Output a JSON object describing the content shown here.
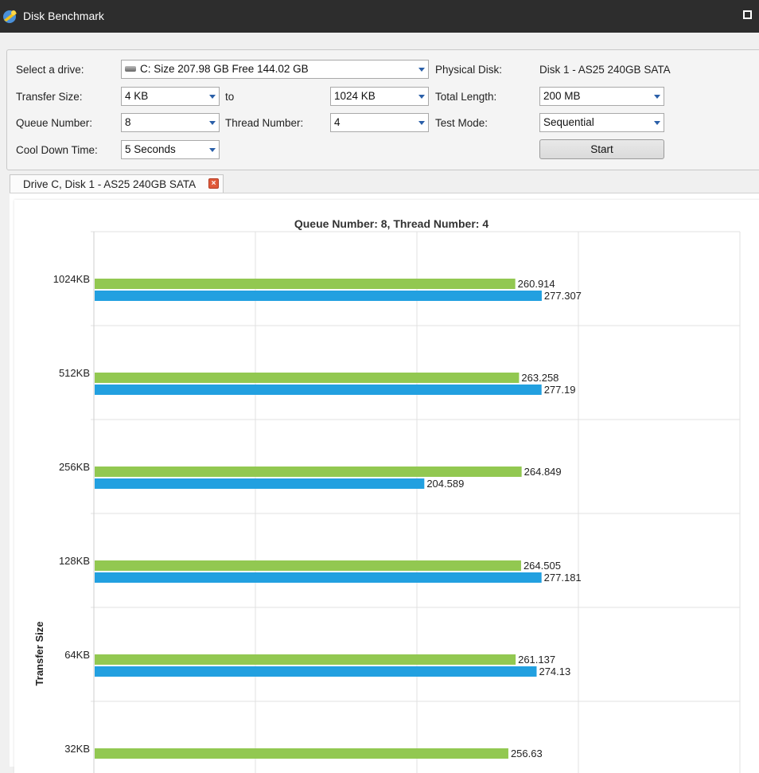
{
  "window": {
    "title": "Disk Benchmark"
  },
  "settings": {
    "drive_label": "Select a drive:",
    "drive_value": "C:  Size 207.98 GB  Free 144.02 GB",
    "physical_disk_label": "Physical Disk:",
    "physical_disk_value": "Disk 1 - AS25 240GB SATA",
    "transfer_size_label": "Transfer Size:",
    "transfer_from": "4 KB",
    "to_label": "to",
    "transfer_to": "1024 KB",
    "total_length_label": "Total Length:",
    "total_length_value": "200 MB",
    "queue_number_label": "Queue Number:",
    "queue_number_value": "8",
    "thread_number_label": "Thread Number:",
    "thread_number_value": "4",
    "test_mode_label": "Test Mode:",
    "test_mode_value": "Sequential",
    "cool_down_label": "Cool Down Time:",
    "cool_down_value": "5 Seconds",
    "start_label": "Start"
  },
  "tabs": [
    {
      "label": "Drive C, Disk 1 - AS25 240GB SATA"
    }
  ],
  "colors": {
    "series_a": "#92c851",
    "series_b": "#22a0e0"
  },
  "chart_data": {
    "type": "bar",
    "orientation": "horizontal",
    "title": "Queue Number: 8, Thread Number: 4",
    "ylabel": "Transfer Size",
    "categories": [
      "1024KB",
      "512KB",
      "256KB",
      "128KB",
      "64KB",
      "32KB"
    ],
    "series": [
      {
        "values": [
          260.914,
          263.258,
          264.849,
          264.505,
          261.137,
          256.63
        ]
      },
      {
        "values": [
          277.307,
          277.19,
          204.589,
          277.181,
          274.13,
          null
        ]
      }
    ],
    "xlim": [
      0,
      400
    ],
    "grid": true
  }
}
